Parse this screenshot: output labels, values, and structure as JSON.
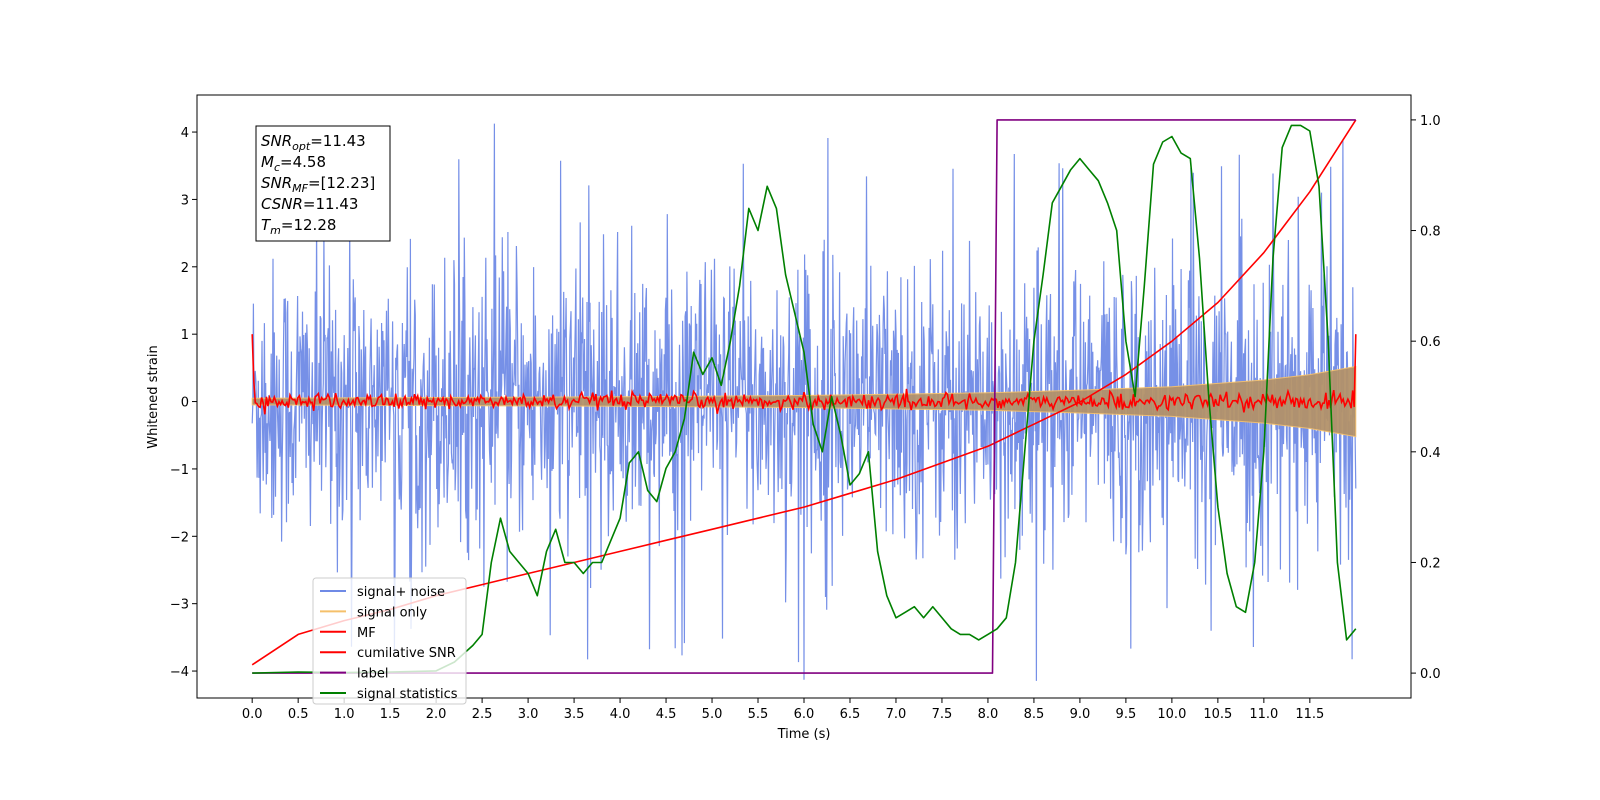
{
  "chart_data": {
    "type": "line",
    "title": "",
    "xlabel": "Time (s)",
    "ylabel": "Whitened strain",
    "xlim": [
      -0.6,
      12.6
    ],
    "ylim": [
      -4.4,
      4.55
    ],
    "y2lim": [
      -0.045,
      1.045
    ],
    "x_ticks": [
      0.0,
      0.5,
      1.0,
      1.5,
      2.0,
      2.5,
      3.0,
      3.5,
      4.0,
      4.5,
      5.0,
      5.5,
      6.0,
      6.5,
      7.0,
      7.5,
      8.0,
      8.5,
      9.0,
      9.5,
      10.0,
      10.5,
      11.0,
      11.5
    ],
    "x_tick_labels": [
      "0.0",
      "0.5",
      "1.0",
      "1.5",
      "2.0",
      "2.5",
      "3.0",
      "3.5",
      "4.0",
      "4.5",
      "5.0",
      "5.5",
      "6.0",
      "6.5",
      "7.0",
      "7.5",
      "8.0",
      "8.5",
      "9.0",
      "9.5",
      "10.0",
      "10.5",
      "11.0",
      "11.5"
    ],
    "y_ticks": [
      4,
      3,
      2,
      1,
      0,
      -1,
      -2,
      -3,
      -4
    ],
    "y_tick_labels": [
      "4",
      "3",
      "2",
      "1",
      "0",
      "−1",
      "−2",
      "−3",
      "−4"
    ],
    "y2_ticks": [
      1.0,
      0.8,
      0.6,
      0.4,
      0.2,
      0.0
    ],
    "y2_tick_labels": [
      "1.0",
      "0.8",
      "0.6",
      "0.4",
      "0.2",
      "0.0"
    ],
    "grid": false,
    "legend_position": "lower-left",
    "series": [
      {
        "name": "signal+ noise",
        "color": "#6f8ae6",
        "axis": "left",
        "kind": "noise-band",
        "x_range": [
          0.0,
          12.0
        ],
        "typical_amplitude": 1.9,
        "peak_amplitude": 4.15,
        "samples": 1800
      },
      {
        "name": "signal only",
        "color": "#f5c06b",
        "axis": "left",
        "kind": "chirp-envelope",
        "x": [
          0.0,
          2.0,
          4.0,
          6.0,
          8.0,
          9.0,
          10.0,
          11.0,
          11.5,
          12.0
        ],
        "envelope": [
          0.05,
          0.06,
          0.07,
          0.09,
          0.13,
          0.17,
          0.22,
          0.32,
          0.4,
          0.52
        ]
      },
      {
        "name": "MF",
        "color": "#ff0000",
        "axis": "left",
        "kind": "noise-line",
        "x_range": [
          0.0,
          12.0
        ],
        "endpoint_value": 1.0,
        "noise_amplitude": 0.12
      },
      {
        "name": "cumilative SNR",
        "color": "#ff0000",
        "axis": "right",
        "x": [
          0.0,
          0.5,
          1.0,
          1.5,
          2.0,
          2.5,
          3.0,
          3.5,
          4.0,
          4.5,
          5.0,
          5.5,
          6.0,
          6.5,
          7.0,
          7.5,
          8.0,
          8.5,
          9.0,
          9.5,
          10.0,
          10.5,
          11.0,
          11.5,
          12.0
        ],
        "y": [
          0.015,
          0.07,
          0.095,
          0.115,
          0.14,
          0.16,
          0.18,
          0.2,
          0.22,
          0.24,
          0.26,
          0.28,
          0.3,
          0.325,
          0.35,
          0.38,
          0.41,
          0.45,
          0.49,
          0.54,
          0.6,
          0.67,
          0.76,
          0.87,
          1.0
        ]
      },
      {
        "name": "label",
        "color": "#800080",
        "axis": "right",
        "x": [
          0.0,
          8.05,
          8.1,
          12.0
        ],
        "y": [
          0.0,
          0.0,
          1.0,
          1.0
        ]
      },
      {
        "name": "signal statistics",
        "color": "#008000",
        "axis": "right",
        "x": [
          0.0,
          0.5,
          1.0,
          1.5,
          2.0,
          2.2,
          2.4,
          2.5,
          2.6,
          2.7,
          2.8,
          2.9,
          3.0,
          3.1,
          3.2,
          3.3,
          3.4,
          3.5,
          3.6,
          3.7,
          3.8,
          3.9,
          4.0,
          4.1,
          4.2,
          4.3,
          4.4,
          4.5,
          4.6,
          4.7,
          4.8,
          4.9,
          5.0,
          5.1,
          5.2,
          5.3,
          5.4,
          5.5,
          5.6,
          5.7,
          5.8,
          5.9,
          6.0,
          6.1,
          6.2,
          6.3,
          6.4,
          6.5,
          6.6,
          6.7,
          6.8,
          6.9,
          7.0,
          7.1,
          7.2,
          7.3,
          7.4,
          7.5,
          7.6,
          7.7,
          7.8,
          7.9,
          8.0,
          8.1,
          8.2,
          8.3,
          8.4,
          8.5,
          8.6,
          8.7,
          8.8,
          8.9,
          9.0,
          9.1,
          9.2,
          9.3,
          9.4,
          9.5,
          9.6,
          9.7,
          9.8,
          9.9,
          10.0,
          10.1,
          10.2,
          10.3,
          10.4,
          10.5,
          10.6,
          10.7,
          10.8,
          10.9,
          11.0,
          11.1,
          11.2,
          11.3,
          11.4,
          11.5,
          11.6,
          11.7,
          11.8,
          11.9,
          12.0
        ],
        "y": [
          0.0,
          0.002,
          0.001,
          0.002,
          0.004,
          0.02,
          0.05,
          0.07,
          0.2,
          0.28,
          0.22,
          0.2,
          0.18,
          0.14,
          0.22,
          0.26,
          0.2,
          0.2,
          0.18,
          0.2,
          0.2,
          0.24,
          0.28,
          0.38,
          0.4,
          0.33,
          0.31,
          0.37,
          0.4,
          0.46,
          0.58,
          0.54,
          0.57,
          0.52,
          0.6,
          0.7,
          0.84,
          0.8,
          0.88,
          0.84,
          0.72,
          0.65,
          0.58,
          0.45,
          0.4,
          0.5,
          0.43,
          0.34,
          0.36,
          0.4,
          0.22,
          0.14,
          0.1,
          0.11,
          0.12,
          0.1,
          0.12,
          0.1,
          0.08,
          0.07,
          0.07,
          0.06,
          0.07,
          0.08,
          0.1,
          0.2,
          0.4,
          0.6,
          0.72,
          0.85,
          0.88,
          0.91,
          0.93,
          0.91,
          0.89,
          0.85,
          0.8,
          0.6,
          0.5,
          0.7,
          0.92,
          0.96,
          0.97,
          0.94,
          0.93,
          0.75,
          0.5,
          0.3,
          0.18,
          0.12,
          0.11,
          0.2,
          0.4,
          0.75,
          0.95,
          0.99,
          0.99,
          0.98,
          0.88,
          0.6,
          0.2,
          0.06,
          0.08
        ]
      }
    ],
    "annotation": {
      "lines": [
        {
          "base": "SNR",
          "sub": "opt",
          "value": "=11.43"
        },
        {
          "base": "M",
          "sub": "c",
          "value": "=4.58"
        },
        {
          "base": "SNR",
          "sub": "MF",
          "value": "=[12.23]"
        },
        {
          "base": "CSNR",
          "sub": "",
          "value": "=11.43"
        },
        {
          "base": "T",
          "sub": "m",
          "value": "=12.28"
        }
      ]
    }
  }
}
